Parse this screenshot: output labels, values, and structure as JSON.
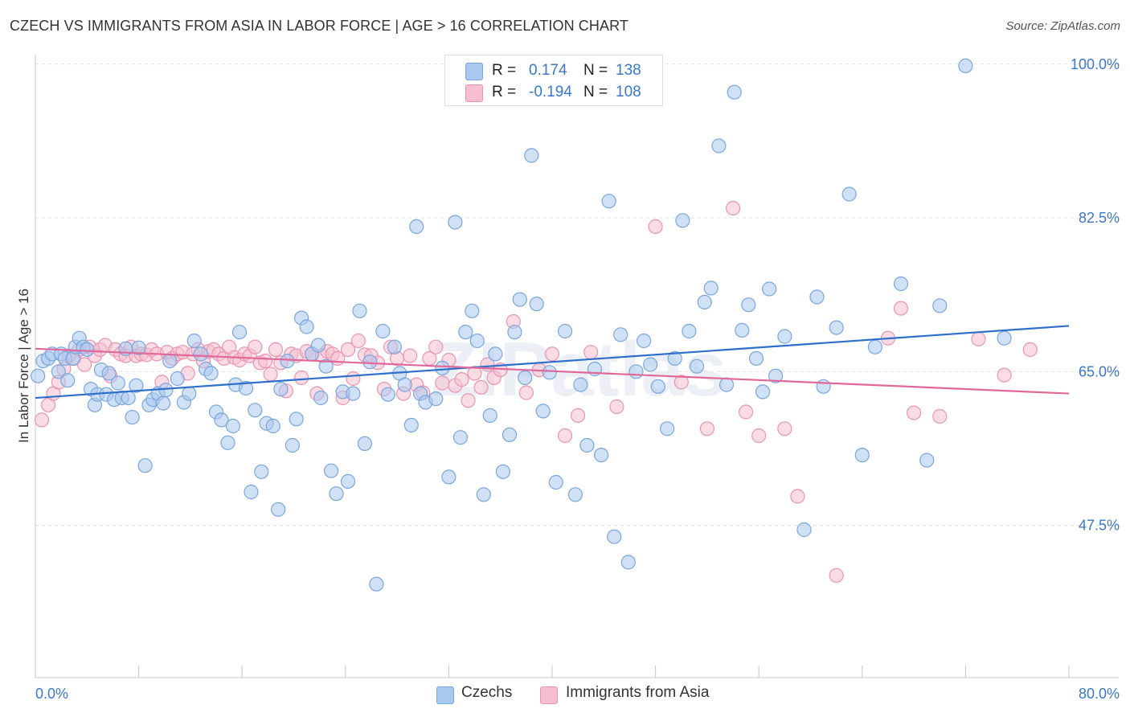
{
  "title": "CZECH VS IMMIGRANTS FROM ASIA IN LABOR FORCE | AGE > 16 CORRELATION CHART",
  "source": "Source: ZipAtlas.com",
  "watermark": "ZIPatlas",
  "legend": {
    "r_label": "R =",
    "n_label": "N =",
    "rows": [
      {
        "r": "0.174",
        "n": "138",
        "color": "#a9c8ef"
      },
      {
        "r": "-0.194",
        "n": "108",
        "color": "#f5b8cc"
      }
    ]
  },
  "bottom_legend": [
    "Czechs",
    "Immigrants from Asia"
  ],
  "colors": {
    "czech_fill": "#a9c8ef",
    "czech_stroke": "#7aa6dd",
    "czech_line": "#2f6fcc",
    "asia_fill": "#f5bfd0",
    "asia_stroke": "#eb94b2",
    "asia_line": "#e0689a",
    "axis_text": "#3a78c9",
    "grid": "#e0e0e0"
  },
  "chart_data": {
    "type": "scatter",
    "title": "CZECH VS IMMIGRANTS FROM ASIA IN LABOR FORCE | AGE > 16 CORRELATION CHART",
    "xlabel": "",
    "ylabel": "In Labor Force | Age > 16",
    "xlim": [
      0,
      80
    ],
    "ylim": [
      31,
      102
    ],
    "x_tick_labels": [
      "0.0%",
      "80.0%"
    ],
    "y_ticks": [
      47.5,
      65.0,
      82.5,
      100.0
    ],
    "y_tick_labels": [
      "47.5%",
      "65.0%",
      "82.5%",
      "100.0%"
    ],
    "grid": true,
    "legend_position": "top-center",
    "series": [
      {
        "name": "Czechs",
        "r": 0.174,
        "n": 138,
        "trend": [
          [
            0,
            62.0
          ],
          [
            80,
            70.2
          ]
        ],
        "points": [
          [
            0.2,
            64.5
          ],
          [
            0.6,
            66.2
          ],
          [
            1.0,
            66.5
          ],
          [
            1.3,
            67.0
          ],
          [
            1.8,
            65.0
          ],
          [
            2.0,
            67.0
          ],
          [
            2.3,
            66.5
          ],
          [
            2.5,
            64.0
          ],
          [
            2.9,
            66.5
          ],
          [
            3.1,
            67.8
          ],
          [
            3.4,
            68.8
          ],
          [
            3.7,
            67.8
          ],
          [
            4.0,
            67.5
          ],
          [
            4.3,
            63.0
          ],
          [
            4.6,
            61.2
          ],
          [
            4.8,
            62.4
          ],
          [
            5.1,
            65.2
          ],
          [
            5.5,
            62.4
          ],
          [
            5.7,
            64.8
          ],
          [
            6.1,
            61.8
          ],
          [
            6.4,
            63.7
          ],
          [
            6.7,
            62.0
          ],
          [
            7.0,
            67.6
          ],
          [
            7.2,
            62.0
          ],
          [
            7.5,
            59.8
          ],
          [
            7.8,
            63.4
          ],
          [
            8.0,
            67.7
          ],
          [
            8.5,
            54.3
          ],
          [
            8.8,
            61.2
          ],
          [
            9.1,
            61.8
          ],
          [
            9.5,
            62.5
          ],
          [
            9.9,
            61.4
          ],
          [
            10.1,
            62.9
          ],
          [
            10.4,
            66.2
          ],
          [
            11.0,
            64.2
          ],
          [
            11.5,
            61.5
          ],
          [
            11.9,
            62.5
          ],
          [
            12.3,
            68.5
          ],
          [
            12.8,
            67.0
          ],
          [
            13.2,
            65.3
          ],
          [
            13.6,
            64.8
          ],
          [
            14.0,
            60.4
          ],
          [
            14.4,
            59.5
          ],
          [
            14.9,
            56.9
          ],
          [
            15.3,
            58.8
          ],
          [
            15.5,
            63.5
          ],
          [
            15.8,
            69.5
          ],
          [
            16.3,
            63.1
          ],
          [
            16.7,
            51.3
          ],
          [
            17.0,
            60.6
          ],
          [
            17.5,
            53.6
          ],
          [
            17.9,
            59.1
          ],
          [
            18.4,
            58.8
          ],
          [
            18.8,
            49.3
          ],
          [
            19.0,
            63.0
          ],
          [
            19.5,
            66.2
          ],
          [
            19.9,
            56.6
          ],
          [
            20.2,
            59.6
          ],
          [
            20.6,
            71.1
          ],
          [
            21.0,
            70.1
          ],
          [
            21.4,
            67.0
          ],
          [
            21.9,
            68.0
          ],
          [
            22.1,
            62.0
          ],
          [
            22.5,
            65.6
          ],
          [
            22.9,
            53.7
          ],
          [
            23.3,
            51.1
          ],
          [
            23.8,
            62.7
          ],
          [
            24.2,
            52.5
          ],
          [
            24.6,
            62.5
          ],
          [
            25.1,
            71.9
          ],
          [
            25.5,
            56.8
          ],
          [
            25.9,
            66.1
          ],
          [
            26.4,
            40.8
          ],
          [
            26.9,
            69.6
          ],
          [
            27.3,
            62.4
          ],
          [
            27.8,
            67.8
          ],
          [
            28.2,
            64.8
          ],
          [
            28.6,
            63.5
          ],
          [
            29.1,
            58.9
          ],
          [
            29.5,
            81.5
          ],
          [
            29.8,
            62.5
          ],
          [
            30.2,
            61.5
          ],
          [
            31.0,
            61.9
          ],
          [
            31.5,
            65.4
          ],
          [
            32.0,
            53.0
          ],
          [
            32.5,
            82.0
          ],
          [
            32.9,
            57.5
          ],
          [
            33.3,
            69.5
          ],
          [
            33.8,
            71.9
          ],
          [
            34.2,
            68.5
          ],
          [
            34.7,
            51.0
          ],
          [
            35.2,
            60.0
          ],
          [
            35.6,
            67.0
          ],
          [
            36.2,
            53.6
          ],
          [
            36.7,
            57.8
          ],
          [
            37.1,
            69.5
          ],
          [
            37.5,
            73.2
          ],
          [
            37.9,
            64.3
          ],
          [
            38.4,
            89.6
          ],
          [
            38.8,
            72.7
          ],
          [
            39.3,
            60.5
          ],
          [
            39.8,
            64.9
          ],
          [
            40.3,
            52.4
          ],
          [
            41.0,
            69.6
          ],
          [
            41.8,
            51.0
          ],
          [
            42.2,
            63.5
          ],
          [
            42.7,
            56.6
          ],
          [
            43.3,
            65.3
          ],
          [
            43.8,
            55.5
          ],
          [
            44.4,
            84.4
          ],
          [
            44.8,
            46.2
          ],
          [
            45.3,
            69.2
          ],
          [
            45.9,
            43.3
          ],
          [
            46.5,
            65.0
          ],
          [
            47.1,
            68.5
          ],
          [
            47.6,
            65.8
          ],
          [
            48.2,
            63.3
          ],
          [
            48.9,
            58.5
          ],
          [
            49.5,
            66.5
          ],
          [
            50.1,
            82.2
          ],
          [
            50.6,
            69.6
          ],
          [
            51.2,
            65.6
          ],
          [
            51.8,
            72.9
          ],
          [
            52.3,
            74.5
          ],
          [
            52.9,
            90.7
          ],
          [
            53.5,
            63.5
          ],
          [
            54.1,
            96.8
          ],
          [
            54.7,
            69.7
          ],
          [
            55.2,
            72.6
          ],
          [
            55.8,
            66.5
          ],
          [
            56.3,
            62.7
          ],
          [
            56.8,
            74.4
          ],
          [
            57.3,
            64.5
          ],
          [
            58.0,
            69.0
          ],
          [
            59.5,
            47.0
          ],
          [
            60.5,
            73.5
          ],
          [
            61.0,
            63.3
          ],
          [
            62.0,
            70.0
          ],
          [
            63.0,
            85.2
          ],
          [
            64.0,
            55.5
          ],
          [
            65.0,
            67.8
          ],
          [
            67.0,
            75.0
          ],
          [
            69.0,
            54.9
          ],
          [
            70.0,
            72.5
          ],
          [
            72.0,
            99.8
          ],
          [
            75.0,
            68.8
          ]
        ]
      },
      {
        "name": "Immigrants from Asia",
        "r": -0.194,
        "n": 108,
        "trend": [
          [
            0,
            67.6
          ],
          [
            80,
            62.5
          ]
        ],
        "points": [
          [
            0.5,
            59.5
          ],
          [
            1.0,
            61.2
          ],
          [
            1.4,
            62.5
          ],
          [
            1.8,
            63.8
          ],
          [
            2.2,
            65.3
          ],
          [
            2.6,
            66.8
          ],
          [
            3.0,
            66.5
          ],
          [
            3.4,
            67.5
          ],
          [
            3.8,
            65.8
          ],
          [
            4.2,
            67.8
          ],
          [
            4.6,
            66.8
          ],
          [
            5.0,
            67.5
          ],
          [
            5.4,
            68.0
          ],
          [
            5.8,
            64.5
          ],
          [
            6.2,
            67.5
          ],
          [
            6.6,
            67.0
          ],
          [
            7.0,
            66.8
          ],
          [
            7.4,
            67.8
          ],
          [
            7.8,
            66.8
          ],
          [
            8.2,
            67.0
          ],
          [
            8.6,
            66.9
          ],
          [
            9.0,
            67.5
          ],
          [
            9.4,
            67.0
          ],
          [
            9.8,
            63.8
          ],
          [
            10.2,
            67.2
          ],
          [
            10.6,
            66.5
          ],
          [
            11.0,
            67.0
          ],
          [
            11.4,
            67.2
          ],
          [
            11.8,
            64.8
          ],
          [
            12.2,
            67.0
          ],
          [
            12.6,
            67.5
          ],
          [
            13.0,
            66.2
          ],
          [
            13.4,
            67.3
          ],
          [
            13.8,
            67.5
          ],
          [
            14.2,
            67.0
          ],
          [
            14.6,
            66.5
          ],
          [
            15.0,
            67.8
          ],
          [
            15.4,
            66.6
          ],
          [
            15.8,
            66.3
          ],
          [
            16.2,
            67.0
          ],
          [
            16.6,
            66.8
          ],
          [
            17.0,
            67.8
          ],
          [
            17.4,
            66.0
          ],
          [
            17.8,
            66.2
          ],
          [
            18.2,
            64.7
          ],
          [
            18.6,
            67.5
          ],
          [
            19.0,
            66.0
          ],
          [
            19.4,
            62.8
          ],
          [
            19.8,
            67.0
          ],
          [
            20.2,
            66.8
          ],
          [
            20.6,
            64.3
          ],
          [
            21.0,
            67.3
          ],
          [
            21.4,
            67.0
          ],
          [
            21.8,
            62.5
          ],
          [
            22.2,
            66.8
          ],
          [
            22.6,
            67.3
          ],
          [
            23.0,
            67.0
          ],
          [
            23.4,
            66.5
          ],
          [
            23.8,
            62.0
          ],
          [
            24.2,
            67.5
          ],
          [
            24.6,
            64.2
          ],
          [
            25.0,
            68.5
          ],
          [
            25.5,
            66.9
          ],
          [
            26.0,
            66.8
          ],
          [
            26.5,
            66.0
          ],
          [
            27.0,
            63.0
          ],
          [
            27.5,
            67.8
          ],
          [
            28.0,
            66.5
          ],
          [
            28.5,
            62.5
          ],
          [
            29.0,
            66.8
          ],
          [
            29.5,
            63.5
          ],
          [
            30.0,
            62.6
          ],
          [
            30.5,
            66.5
          ],
          [
            31.0,
            67.8
          ],
          [
            31.5,
            63.7
          ],
          [
            32.0,
            66.3
          ],
          [
            32.5,
            63.4
          ],
          [
            33.0,
            64.1
          ],
          [
            33.5,
            61.7
          ],
          [
            34.0,
            64.8
          ],
          [
            34.5,
            63.2
          ],
          [
            35.0,
            65.8
          ],
          [
            35.5,
            64.3
          ],
          [
            36.0,
            65.2
          ],
          [
            37.0,
            70.7
          ],
          [
            38.0,
            62.6
          ],
          [
            39.0,
            65.2
          ],
          [
            40.0,
            67.0
          ],
          [
            41.0,
            57.7
          ],
          [
            42.0,
            60.0
          ],
          [
            43.0,
            67.2
          ],
          [
            45.0,
            61.0
          ],
          [
            48.0,
            81.5
          ],
          [
            50.0,
            63.8
          ],
          [
            52.0,
            58.5
          ],
          [
            54.0,
            83.6
          ],
          [
            55.0,
            60.4
          ],
          [
            56.0,
            57.7
          ],
          [
            58.0,
            58.5
          ],
          [
            59.0,
            50.8
          ],
          [
            62.0,
            41.8
          ],
          [
            66.0,
            68.8
          ],
          [
            67.0,
            72.2
          ],
          [
            68.0,
            60.3
          ],
          [
            70.0,
            59.9
          ],
          [
            73.0,
            68.7
          ],
          [
            75.0,
            64.6
          ],
          [
            77.0,
            67.5
          ]
        ]
      }
    ]
  }
}
